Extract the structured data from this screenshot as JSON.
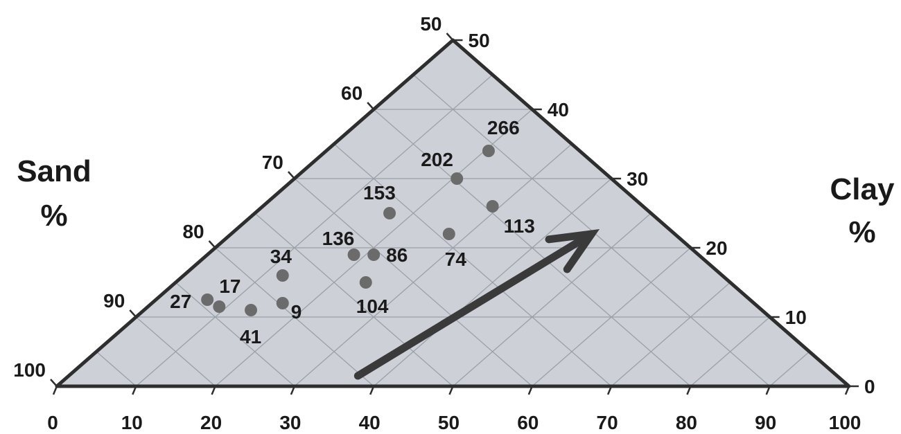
{
  "chart_data": {
    "type": "scatter",
    "title": "",
    "diagram": "ternary-trapezoid",
    "xlabel": "",
    "left_axis_label": [
      "Sand",
      "%"
    ],
    "right_axis_label": [
      "Clay",
      "%"
    ],
    "x_ticks": [
      "0",
      "10",
      "20",
      "30",
      "40",
      "50",
      "60",
      "70",
      "80",
      "90",
      "100"
    ],
    "clay_ticks": [
      "0",
      "10",
      "20",
      "30",
      "40",
      "50"
    ],
    "sand_ticks": [
      "50",
      "60",
      "70",
      "80",
      "90",
      "100"
    ],
    "xlim": [
      0,
      100
    ],
    "clay_lim": [
      0,
      50
    ],
    "grid": true,
    "colors": {
      "plot_fill": "#cdd1d7",
      "grid": "#9aa0a8",
      "border": "#2e2e2e",
      "point": "#6b6b6b",
      "arrow": "#3a3a3a"
    },
    "points": [
      {
        "label": "266",
        "x": 54.5,
        "clay": 34
      },
      {
        "label": "202",
        "x": 50.5,
        "clay": 30
      },
      {
        "label": "153",
        "x": 42.0,
        "clay": 25
      },
      {
        "label": "113",
        "x": 55.0,
        "clay": 26
      },
      {
        "label": "74",
        "x": 49.5,
        "clay": 22
      },
      {
        "label": "136",
        "x": 37.5,
        "clay": 19
      },
      {
        "label": "86",
        "x": 40.0,
        "clay": 19
      },
      {
        "label": "104",
        "x": 39.0,
        "clay": 15
      },
      {
        "label": "34",
        "x": 28.5,
        "clay": 16
      },
      {
        "label": "9",
        "x": 28.5,
        "clay": 12
      },
      {
        "label": "41",
        "x": 24.5,
        "clay": 11
      },
      {
        "label": "17",
        "x": 20.5,
        "clay": 11.5
      },
      {
        "label": "27",
        "x": 19.0,
        "clay": 12.5
      }
    ],
    "arrow": {
      "from": {
        "x": 38.0,
        "clay": 1.5
      },
      "to": {
        "x": 67.5,
        "clay": 22
      }
    }
  }
}
